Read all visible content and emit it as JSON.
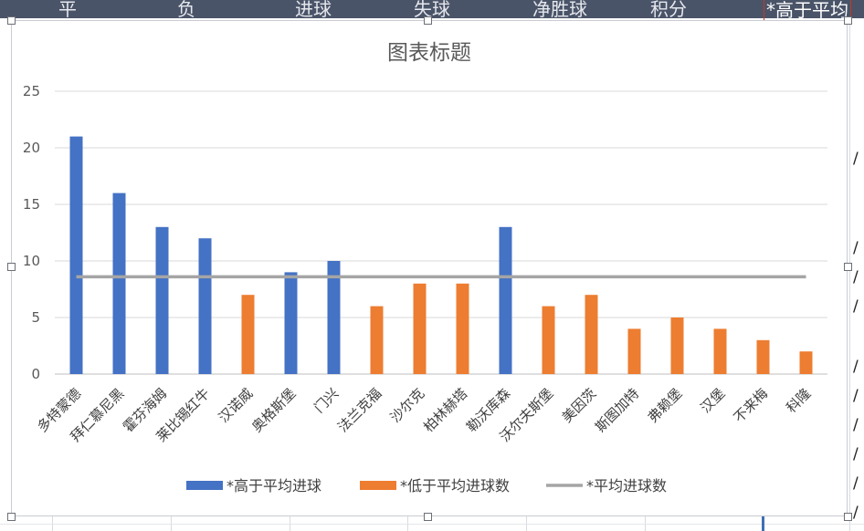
{
  "sheet": {
    "column_headers": [
      "平",
      "负",
      "进球",
      "失球",
      "净胜球",
      "积分",
      "*高于平均"
    ],
    "side_cells": [
      "/",
      "/",
      "/",
      "/",
      "/",
      "/",
      "/",
      "/",
      "/",
      "/"
    ]
  },
  "chart_data": {
    "type": "bar",
    "title": "图表标题",
    "xlabel": "",
    "ylabel": "",
    "ylim": [
      0,
      25
    ],
    "yticks": [
      0,
      5,
      10,
      15,
      20,
      25
    ],
    "grid": true,
    "legend_position": "bottom",
    "categories": [
      "多特蒙德",
      "拜仁慕尼黑",
      "霍芬海姆",
      "莱比锡红牛",
      "汉诺威",
      "奥格斯堡",
      "门兴",
      "法兰克福",
      "沙尔克",
      "柏林赫塔",
      "勒沃库森",
      "沃尔夫斯堡",
      "美因茨",
      "斯图加特",
      "弗赖堡",
      "汉堡",
      "不来梅",
      "科隆"
    ],
    "series": [
      {
        "name": "*高于平均进球",
        "color": "#4472c4",
        "values": [
          21,
          16,
          13,
          12,
          null,
          9,
          10,
          null,
          null,
          null,
          13,
          null,
          null,
          null,
          null,
          null,
          null,
          null
        ]
      },
      {
        "name": "*低于平均进球数",
        "color": "#ed7d31",
        "values": [
          null,
          null,
          null,
          null,
          7,
          null,
          null,
          6,
          8,
          8,
          null,
          6,
          7,
          4,
          5,
          4,
          3,
          2
        ]
      },
      {
        "name": "*平均进球数",
        "type": "line",
        "color": "#a5a5a5",
        "value": 8.6
      }
    ]
  }
}
